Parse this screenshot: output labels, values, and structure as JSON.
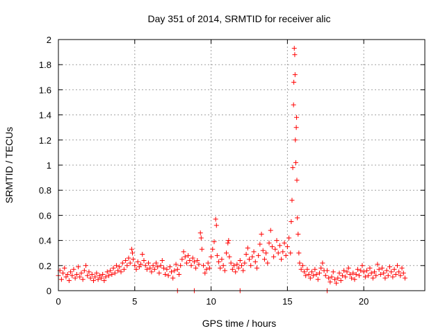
{
  "chart_data": {
    "type": "scatter",
    "title": "Day 351 of 2014, SRMTID for receiver alic",
    "xlabel": "GPS time / hours",
    "ylabel": "SRMTID / TECUs",
    "xlim": [
      0,
      24
    ],
    "ylim": [
      0,
      2
    ],
    "xticks": [
      0,
      5,
      10,
      15,
      20
    ],
    "xtick_labels": [
      "0",
      "5",
      "10",
      "15",
      "20"
    ],
    "yticks": [
      0,
      0.2,
      0.4,
      0.6,
      0.8,
      1,
      1.2,
      1.4,
      1.6,
      1.8,
      2
    ],
    "ytick_labels": [
      "0",
      "0.2",
      "0.4",
      "0.6",
      "0.8",
      "1",
      "1.2",
      "1.4",
      "1.6",
      "1.8",
      "2"
    ],
    "grid": true,
    "marker": "plus",
    "marker_color": "#ff0000",
    "series": [
      {
        "name": "SRMTID",
        "points": [
          [
            0.0,
            0.12
          ],
          [
            0.1,
            0.16
          ],
          [
            0.2,
            0.09
          ],
          [
            0.3,
            0.14
          ],
          [
            0.4,
            0.18
          ],
          [
            0.5,
            0.11
          ],
          [
            0.6,
            0.13
          ],
          [
            0.7,
            0.08
          ],
          [
            0.8,
            0.15
          ],
          [
            0.9,
            0.12
          ],
          [
            1.0,
            0.17
          ],
          [
            1.1,
            0.1
          ],
          [
            1.2,
            0.13
          ],
          [
            1.3,
            0.19
          ],
          [
            1.4,
            0.11
          ],
          [
            1.5,
            0.14
          ],
          [
            1.6,
            0.09
          ],
          [
            1.7,
            0.16
          ],
          [
            1.8,
            0.2
          ],
          [
            1.9,
            0.12
          ],
          [
            2.0,
            0.15
          ],
          [
            2.1,
            0.1
          ],
          [
            2.2,
            0.13
          ],
          [
            2.3,
            0.08
          ],
          [
            2.4,
            0.11
          ],
          [
            2.5,
            0.14
          ],
          [
            2.6,
            0.09
          ],
          [
            2.7,
            0.12
          ],
          [
            2.8,
            0.1
          ],
          [
            2.9,
            0.13
          ],
          [
            3.0,
            0.08
          ],
          [
            3.1,
            0.11
          ],
          [
            3.2,
            0.15
          ],
          [
            3.3,
            0.12
          ],
          [
            3.4,
            0.16
          ],
          [
            3.5,
            0.13
          ],
          [
            3.6,
            0.18
          ],
          [
            3.7,
            0.14
          ],
          [
            3.8,
            0.2
          ],
          [
            3.9,
            0.16
          ],
          [
            4.0,
            0.19
          ],
          [
            4.1,
            0.15
          ],
          [
            4.2,
            0.22
          ],
          [
            4.3,
            0.17
          ],
          [
            4.4,
            0.24
          ],
          [
            4.5,
            0.2
          ],
          [
            4.6,
            0.26
          ],
          [
            4.7,
            0.22
          ],
          [
            4.8,
            0.33
          ],
          [
            4.85,
            0.3
          ],
          [
            4.9,
            0.25
          ],
          [
            5.0,
            0.2
          ],
          [
            5.1,
            0.17
          ],
          [
            5.2,
            0.23
          ],
          [
            5.3,
            0.19
          ],
          [
            5.4,
            0.21
          ],
          [
            5.5,
            0.29
          ],
          [
            5.6,
            0.24
          ],
          [
            5.7,
            0.2
          ],
          [
            5.8,
            0.17
          ],
          [
            5.9,
            0.22
          ],
          [
            6.0,
            0.18
          ],
          [
            6.1,
            0.15
          ],
          [
            6.2,
            0.2
          ],
          [
            6.3,
            0.17
          ],
          [
            6.4,
            0.22
          ],
          [
            6.5,
            0.19
          ],
          [
            6.6,
            0.14
          ],
          [
            6.7,
            0.2
          ],
          [
            6.8,
            0.24
          ],
          [
            6.9,
            0.18
          ],
          [
            7.0,
            0.13
          ],
          [
            7.1,
            0.17
          ],
          [
            7.2,
            0.12
          ],
          [
            7.3,
            0.19
          ],
          [
            7.4,
            0.15
          ],
          [
            7.5,
            0.1
          ],
          [
            7.6,
            0.16
          ],
          [
            7.7,
            0.21
          ],
          [
            7.8,
            0.17
          ],
          [
            7.9,
            0.13
          ],
          [
            8.0,
            0.2
          ],
          [
            8.1,
            0.25
          ],
          [
            8.2,
            0.31
          ],
          [
            8.3,
            0.27
          ],
          [
            8.4,
            0.22
          ],
          [
            8.5,
            0.28
          ],
          [
            8.6,
            0.24
          ],
          [
            8.7,
            0.2
          ],
          [
            8.8,
            0.26
          ],
          [
            8.9,
            0.23
          ],
          [
            9.0,
            0.18
          ],
          [
            9.1,
            0.24
          ],
          [
            9.2,
            0.21
          ],
          [
            9.3,
            0.46
          ],
          [
            9.35,
            0.42
          ],
          [
            9.4,
            0.33
          ],
          [
            9.5,
            0.2
          ],
          [
            9.6,
            0.14
          ],
          [
            9.7,
            0.17
          ],
          [
            9.8,
            0.22
          ],
          [
            9.9,
            0.18
          ],
          [
            10.0,
            0.27
          ],
          [
            10.1,
            0.33
          ],
          [
            10.2,
            0.39
          ],
          [
            10.3,
            0.57
          ],
          [
            10.35,
            0.52
          ],
          [
            10.4,
            0.28
          ],
          [
            10.5,
            0.23
          ],
          [
            10.6,
            0.18
          ],
          [
            10.7,
            0.25
          ],
          [
            10.8,
            0.2
          ],
          [
            10.9,
            0.16
          ],
          [
            11.0,
            0.3
          ],
          [
            11.1,
            0.38
          ],
          [
            11.15,
            0.4
          ],
          [
            11.2,
            0.27
          ],
          [
            11.3,
            0.22
          ],
          [
            11.4,
            0.17
          ],
          [
            11.5,
            0.2
          ],
          [
            11.6,
            0.15
          ],
          [
            11.7,
            0.21
          ],
          [
            11.8,
            0.18
          ],
          [
            11.9,
            0.24
          ],
          [
            12.0,
            0.2
          ],
          [
            12.1,
            0.16
          ],
          [
            12.2,
            0.22
          ],
          [
            12.3,
            0.29
          ],
          [
            12.4,
            0.34
          ],
          [
            12.5,
            0.25
          ],
          [
            12.6,
            0.2
          ],
          [
            12.7,
            0.27
          ],
          [
            12.8,
            0.31
          ],
          [
            12.9,
            0.23
          ],
          [
            13.0,
            0.18
          ],
          [
            13.1,
            0.28
          ],
          [
            13.2,
            0.37
          ],
          [
            13.3,
            0.45
          ],
          [
            13.4,
            0.32
          ],
          [
            13.5,
            0.25
          ],
          [
            13.6,
            0.3
          ],
          [
            13.7,
            0.22
          ],
          [
            13.8,
            0.38
          ],
          [
            13.9,
            0.48
          ],
          [
            14.0,
            0.35
          ],
          [
            14.1,
            0.27
          ],
          [
            14.2,
            0.33
          ],
          [
            14.3,
            0.4
          ],
          [
            14.4,
            0.3
          ],
          [
            14.5,
            0.36
          ],
          [
            14.6,
            0.25
          ],
          [
            14.7,
            0.31
          ],
          [
            14.8,
            0.38
          ],
          [
            14.9,
            0.28
          ],
          [
            15.0,
            0.35
          ],
          [
            15.1,
            0.42
          ],
          [
            15.2,
            0.3
          ],
          [
            15.25,
            0.55
          ],
          [
            15.3,
            0.72
          ],
          [
            15.35,
            0.98
          ],
          [
            15.4,
            1.48
          ],
          [
            15.42,
            1.66
          ],
          [
            15.45,
            1.93
          ],
          [
            15.48,
            1.88
          ],
          [
            15.5,
            1.72
          ],
          [
            15.52,
            1.2
          ],
          [
            15.55,
            1.02
          ],
          [
            15.58,
            1.3
          ],
          [
            15.6,
            1.38
          ],
          [
            15.62,
            0.88
          ],
          [
            15.65,
            0.58
          ],
          [
            15.7,
            0.45
          ],
          [
            15.75,
            0.3
          ],
          [
            15.8,
            0.22
          ],
          [
            15.9,
            0.17
          ],
          [
            16.0,
            0.2
          ],
          [
            16.1,
            0.15
          ],
          [
            16.2,
            0.12
          ],
          [
            16.3,
            0.17
          ],
          [
            16.4,
            0.13
          ],
          [
            16.5,
            0.1
          ],
          [
            16.6,
            0.15
          ],
          [
            16.7,
            0.12
          ],
          [
            16.8,
            0.17
          ],
          [
            16.9,
            0.13
          ],
          [
            17.0,
            0.09
          ],
          [
            17.1,
            0.14
          ],
          [
            17.2,
            0.18
          ],
          [
            17.3,
            0.22
          ],
          [
            17.4,
            0.16
          ],
          [
            17.5,
            0.12
          ],
          [
            17.6,
            0.16
          ],
          [
            17.7,
            0.1
          ],
          [
            17.8,
            0.07
          ],
          [
            17.9,
            0.11
          ],
          [
            18.0,
            0.15
          ],
          [
            18.1,
            0.09
          ],
          [
            18.2,
            0.06
          ],
          [
            18.3,
            0.1
          ],
          [
            18.4,
            0.14
          ],
          [
            18.5,
            0.08
          ],
          [
            18.6,
            0.12
          ],
          [
            18.7,
            0.16
          ],
          [
            18.8,
            0.11
          ],
          [
            18.9,
            0.15
          ],
          [
            19.0,
            0.18
          ],
          [
            19.1,
            0.13
          ],
          [
            19.2,
            0.1
          ],
          [
            19.3,
            0.14
          ],
          [
            19.4,
            0.09
          ],
          [
            19.5,
            0.13
          ],
          [
            19.6,
            0.17
          ],
          [
            19.7,
            0.12
          ],
          [
            19.8,
            0.16
          ],
          [
            19.9,
            0.2
          ],
          [
            20.0,
            0.15
          ],
          [
            20.1,
            0.11
          ],
          [
            20.2,
            0.16
          ],
          [
            20.3,
            0.12
          ],
          [
            20.4,
            0.18
          ],
          [
            20.5,
            0.14
          ],
          [
            20.6,
            0.1
          ],
          [
            20.7,
            0.15
          ],
          [
            20.8,
            0.12
          ],
          [
            20.9,
            0.21
          ],
          [
            21.0,
            0.17
          ],
          [
            21.1,
            0.13
          ],
          [
            21.2,
            0.18
          ],
          [
            21.3,
            0.14
          ],
          [
            21.4,
            0.1
          ],
          [
            21.5,
            0.16
          ],
          [
            21.6,
            0.12
          ],
          [
            21.7,
            0.19
          ],
          [
            21.8,
            0.15
          ],
          [
            21.9,
            0.11
          ],
          [
            22.0,
            0.17
          ],
          [
            22.1,
            0.13
          ],
          [
            22.2,
            0.2
          ],
          [
            22.3,
            0.15
          ],
          [
            22.4,
            0.12
          ],
          [
            22.5,
            0.18
          ],
          [
            22.6,
            0.14
          ],
          [
            22.7,
            0.1
          ],
          [
            7.8,
            0.0
          ],
          [
            8.9,
            0.0
          ],
          [
            11.9,
            0.0
          ],
          [
            17.6,
            0.0
          ]
        ]
      }
    ]
  }
}
